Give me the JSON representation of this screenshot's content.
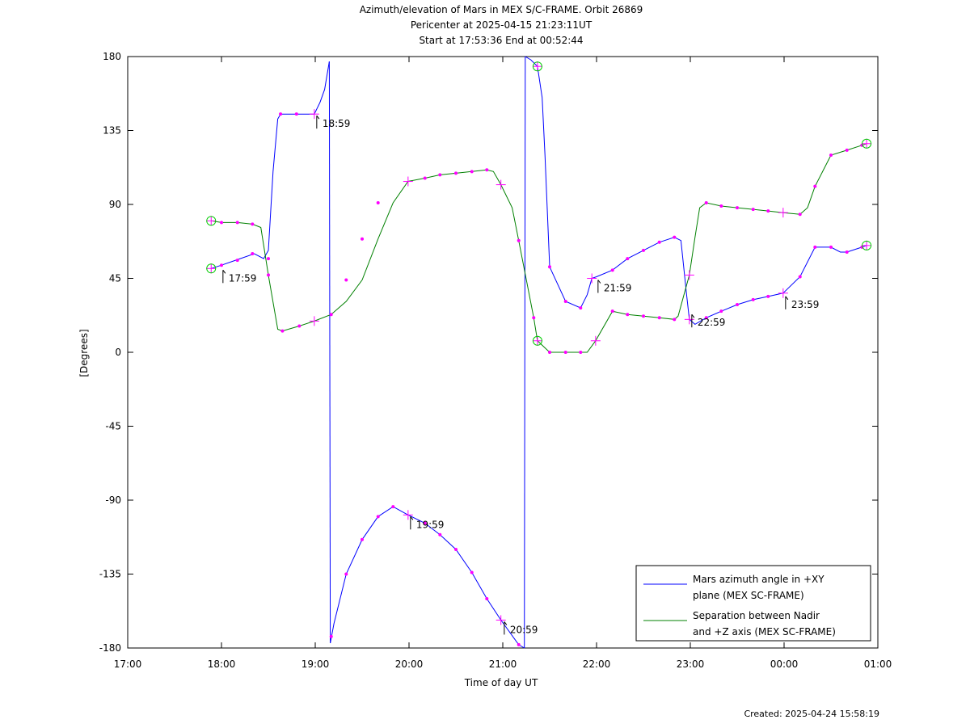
{
  "chart_data": {
    "type": "line",
    "title": [
      "Azimuth/elevation of Mars in MEX S/C-FRAME.  Orbit 26869",
      "Pericenter at 2025-04-15 21:23:11UT",
      "Start at 17:53:36 End at 00:52:44"
    ],
    "xlabel": "Time of day UT",
    "ylabel": "[Degrees]",
    "xlim": [
      17.0,
      25.0
    ],
    "ylim": [
      -180,
      180
    ],
    "x_ticks": [
      {
        "v": 17,
        "label": "17:00"
      },
      {
        "v": 18,
        "label": "18:00"
      },
      {
        "v": 19,
        "label": "19:00"
      },
      {
        "v": 20,
        "label": "20:00"
      },
      {
        "v": 21,
        "label": "21:00"
      },
      {
        "v": 22,
        "label": "22:00"
      },
      {
        "v": 23,
        "label": "23:00"
      },
      {
        "v": 24,
        "label": "00:00"
      },
      {
        "v": 25,
        "label": "01:00"
      }
    ],
    "y_ticks": [
      {
        "v": 180,
        "label": "180"
      },
      {
        "v": 135,
        "label": "135"
      },
      {
        "v": 90,
        "label": "90"
      },
      {
        "v": 45,
        "label": "45"
      },
      {
        "v": 0,
        "label": "0"
      },
      {
        "v": -45,
        "label": "-45"
      },
      {
        "v": -90,
        "label": "-90"
      },
      {
        "v": -135,
        "label": "-135"
      },
      {
        "v": -180,
        "label": "-180"
      }
    ],
    "grid": false,
    "legend_position": "bottom-right",
    "series": [
      {
        "name": "Mars azimuth angle in +XY plane (MEX SC-FRAME)",
        "color": "#0000ff",
        "segments": [
          [
            [
              17.89,
              51
            ],
            [
              18.0,
              53
            ],
            [
              18.15,
              56
            ],
            [
              18.35,
              60
            ],
            [
              18.45,
              57
            ],
            [
              18.5,
              62
            ],
            [
              18.55,
              110
            ],
            [
              18.6,
              142
            ],
            [
              18.63,
              145
            ],
            [
              18.8,
              145
            ],
            [
              18.99,
              145
            ],
            [
              19.05,
              152
            ],
            [
              19.1,
              160
            ],
            [
              19.15,
              177
            ]
          ],
          [
            [
              19.15,
              177
            ],
            [
              19.16,
              -177
            ]
          ],
          [
            [
              19.16,
              -177
            ],
            [
              19.2,
              -165
            ],
            [
              19.33,
              -135
            ],
            [
              19.5,
              -114
            ],
            [
              19.67,
              -100
            ],
            [
              19.83,
              -94
            ],
            [
              19.99,
              -99
            ],
            [
              20.17,
              -104
            ],
            [
              20.33,
              -111
            ],
            [
              20.5,
              -120
            ],
            [
              20.67,
              -134
            ],
            [
              20.83,
              -150
            ],
            [
              20.98,
              -163
            ],
            [
              21.17,
              -178
            ],
            [
              21.23,
              -180
            ]
          ],
          [
            [
              21.23,
              -180
            ],
            [
              21.24,
              180
            ]
          ],
          [
            [
              21.24,
              180
            ],
            [
              21.3,
              178
            ],
            [
              21.37,
              174
            ],
            [
              21.42,
              155
            ],
            [
              21.45,
              120
            ],
            [
              21.5,
              52
            ],
            [
              21.67,
              31
            ],
            [
              21.83,
              27
            ],
            [
              21.9,
              35
            ],
            [
              21.95,
              45
            ],
            [
              22.0,
              46
            ],
            [
              22.17,
              50
            ],
            [
              22.33,
              57
            ],
            [
              22.5,
              62
            ],
            [
              22.67,
              67
            ],
            [
              22.83,
              70
            ],
            [
              22.9,
              68
            ],
            [
              22.96,
              35
            ],
            [
              22.99,
              20
            ],
            [
              23.05,
              17
            ],
            [
              23.17,
              21
            ],
            [
              23.33,
              25
            ],
            [
              23.5,
              29
            ],
            [
              23.67,
              32
            ],
            [
              23.83,
              34
            ],
            [
              23.99,
              36
            ],
            [
              24.17,
              46
            ],
            [
              24.33,
              64
            ],
            [
              24.5,
              64
            ],
            [
              24.6,
              61
            ],
            [
              24.67,
              61
            ],
            [
              24.83,
              64
            ],
            [
              24.88,
              65
            ]
          ]
        ],
        "markers": [
          [
            17.89,
            51
          ],
          [
            18.99,
            145
          ],
          [
            19.99,
            -99
          ],
          [
            20.98,
            -163
          ],
          [
            21.37,
            174
          ],
          [
            21.95,
            45
          ],
          [
            22.99,
            20
          ],
          [
            23.99,
            36
          ],
          [
            24.88,
            65
          ]
        ],
        "dots": [
          [
            18.0,
            53
          ],
          [
            18.17,
            56
          ],
          [
            18.33,
            60
          ],
          [
            18.5,
            57
          ],
          [
            18.63,
            145
          ],
          [
            18.8,
            145
          ],
          [
            19.17,
            -173
          ],
          [
            19.33,
            -135
          ],
          [
            19.5,
            -114
          ],
          [
            19.67,
            -100
          ],
          [
            19.83,
            -94
          ],
          [
            20.17,
            -104
          ],
          [
            20.33,
            -111
          ],
          [
            20.5,
            -120
          ],
          [
            20.67,
            -134
          ],
          [
            20.83,
            -150
          ],
          [
            21.17,
            -178
          ],
          [
            21.5,
            52
          ],
          [
            21.67,
            31
          ],
          [
            21.83,
            27
          ],
          [
            22.17,
            50
          ],
          [
            22.33,
            57
          ],
          [
            22.5,
            62
          ],
          [
            22.67,
            67
          ],
          [
            22.83,
            70
          ],
          [
            23.17,
            21
          ],
          [
            23.33,
            25
          ],
          [
            23.5,
            29
          ],
          [
            23.67,
            32
          ],
          [
            23.83,
            34
          ],
          [
            24.17,
            46
          ],
          [
            24.33,
            64
          ],
          [
            24.5,
            64
          ],
          [
            24.67,
            61
          ],
          [
            24.83,
            64
          ]
        ]
      },
      {
        "name": "Separation between Nadir and +Z axis (MEX SC-FRAME)",
        "color": "#008000",
        "segments": [
          [
            [
              17.89,
              80
            ],
            [
              18.0,
              79
            ],
            [
              18.17,
              79
            ],
            [
              18.33,
              78
            ],
            [
              18.42,
              76
            ],
            [
              18.5,
              47
            ],
            [
              18.6,
              14
            ],
            [
              18.65,
              13
            ],
            [
              18.83,
              16
            ],
            [
              18.99,
              19
            ],
            [
              19.17,
              23
            ],
            [
              19.33,
              31
            ],
            [
              19.5,
              44
            ],
            [
              19.67,
              69
            ],
            [
              19.83,
              91
            ],
            [
              19.99,
              104
            ],
            [
              20.17,
              106
            ],
            [
              20.33,
              108
            ],
            [
              20.5,
              109
            ],
            [
              20.67,
              110
            ],
            [
              20.83,
              111
            ],
            [
              20.9,
              110
            ],
            [
              20.98,
              102
            ],
            [
              21.1,
              88
            ],
            [
              21.17,
              68
            ],
            [
              21.33,
              21
            ],
            [
              21.37,
              7
            ],
            [
              21.5,
              0
            ],
            [
              21.67,
              0
            ],
            [
              21.83,
              0
            ],
            [
              21.9,
              0
            ],
            [
              21.99,
              7
            ],
            [
              22.17,
              25
            ],
            [
              22.33,
              23
            ],
            [
              22.5,
              22
            ],
            [
              22.67,
              21
            ],
            [
              22.83,
              20
            ],
            [
              22.87,
              22
            ],
            [
              22.99,
              47
            ],
            [
              23.05,
              70
            ],
            [
              23.1,
              88
            ],
            [
              23.17,
              91
            ],
            [
              23.33,
              89
            ],
            [
              23.5,
              88
            ],
            [
              23.67,
              87
            ],
            [
              23.83,
              86
            ],
            [
              23.99,
              85
            ],
            [
              24.17,
              84
            ],
            [
              24.25,
              88
            ],
            [
              24.33,
              101
            ],
            [
              24.5,
              120
            ],
            [
              24.67,
              123
            ],
            [
              24.83,
              126
            ],
            [
              24.88,
              127
            ]
          ]
        ],
        "markers": [
          [
            17.89,
            80
          ],
          [
            18.99,
            19
          ],
          [
            19.99,
            104
          ],
          [
            20.98,
            102
          ],
          [
            21.37,
            7
          ],
          [
            21.99,
            7
          ],
          [
            22.99,
            47
          ],
          [
            23.99,
            85
          ],
          [
            24.88,
            127
          ]
        ],
        "dots": [
          [
            18.0,
            79
          ],
          [
            18.17,
            79
          ],
          [
            18.33,
            78
          ],
          [
            18.5,
            47
          ],
          [
            18.65,
            13
          ],
          [
            18.83,
            16
          ],
          [
            19.17,
            23
          ],
          [
            19.33,
            44
          ],
          [
            19.5,
            69
          ],
          [
            19.67,
            91
          ],
          [
            20.17,
            106
          ],
          [
            20.33,
            108
          ],
          [
            20.5,
            109
          ],
          [
            20.67,
            110
          ],
          [
            20.83,
            111
          ],
          [
            21.17,
            68
          ],
          [
            21.33,
            21
          ],
          [
            21.5,
            0
          ],
          [
            21.67,
            0
          ],
          [
            21.83,
            0
          ],
          [
            22.17,
            25
          ],
          [
            22.33,
            23
          ],
          [
            22.5,
            22
          ],
          [
            22.67,
            21
          ],
          [
            22.83,
            20
          ],
          [
            23.17,
            91
          ],
          [
            23.33,
            89
          ],
          [
            23.5,
            88
          ],
          [
            23.67,
            87
          ],
          [
            23.83,
            86
          ],
          [
            24.17,
            84
          ],
          [
            24.33,
            101
          ],
          [
            24.5,
            120
          ],
          [
            24.67,
            123
          ],
          [
            24.83,
            126
          ]
        ]
      }
    ],
    "start_circles": [
      [
        17.89,
        51
      ],
      [
        17.89,
        80
      ],
      [
        21.37,
        174
      ],
      [
        21.37,
        7
      ],
      [
        24.88,
        65
      ],
      [
        24.88,
        127
      ]
    ],
    "annotations": [
      {
        "x": 17.99,
        "y": 51,
        "label": "17:59"
      },
      {
        "x": 18.99,
        "y": 145,
        "label": "18:59"
      },
      {
        "x": 19.99,
        "y": -99,
        "label": "19:59"
      },
      {
        "x": 20.99,
        "y": -163,
        "label": "20:59"
      },
      {
        "x": 21.99,
        "y": 45,
        "label": "21:59"
      },
      {
        "x": 22.99,
        "y": 24,
        "label": "22:59"
      },
      {
        "x": 23.99,
        "y": 35,
        "label": "23:59"
      }
    ]
  },
  "footer": {
    "created": "Created: 2025-04-24 15:58:19"
  }
}
